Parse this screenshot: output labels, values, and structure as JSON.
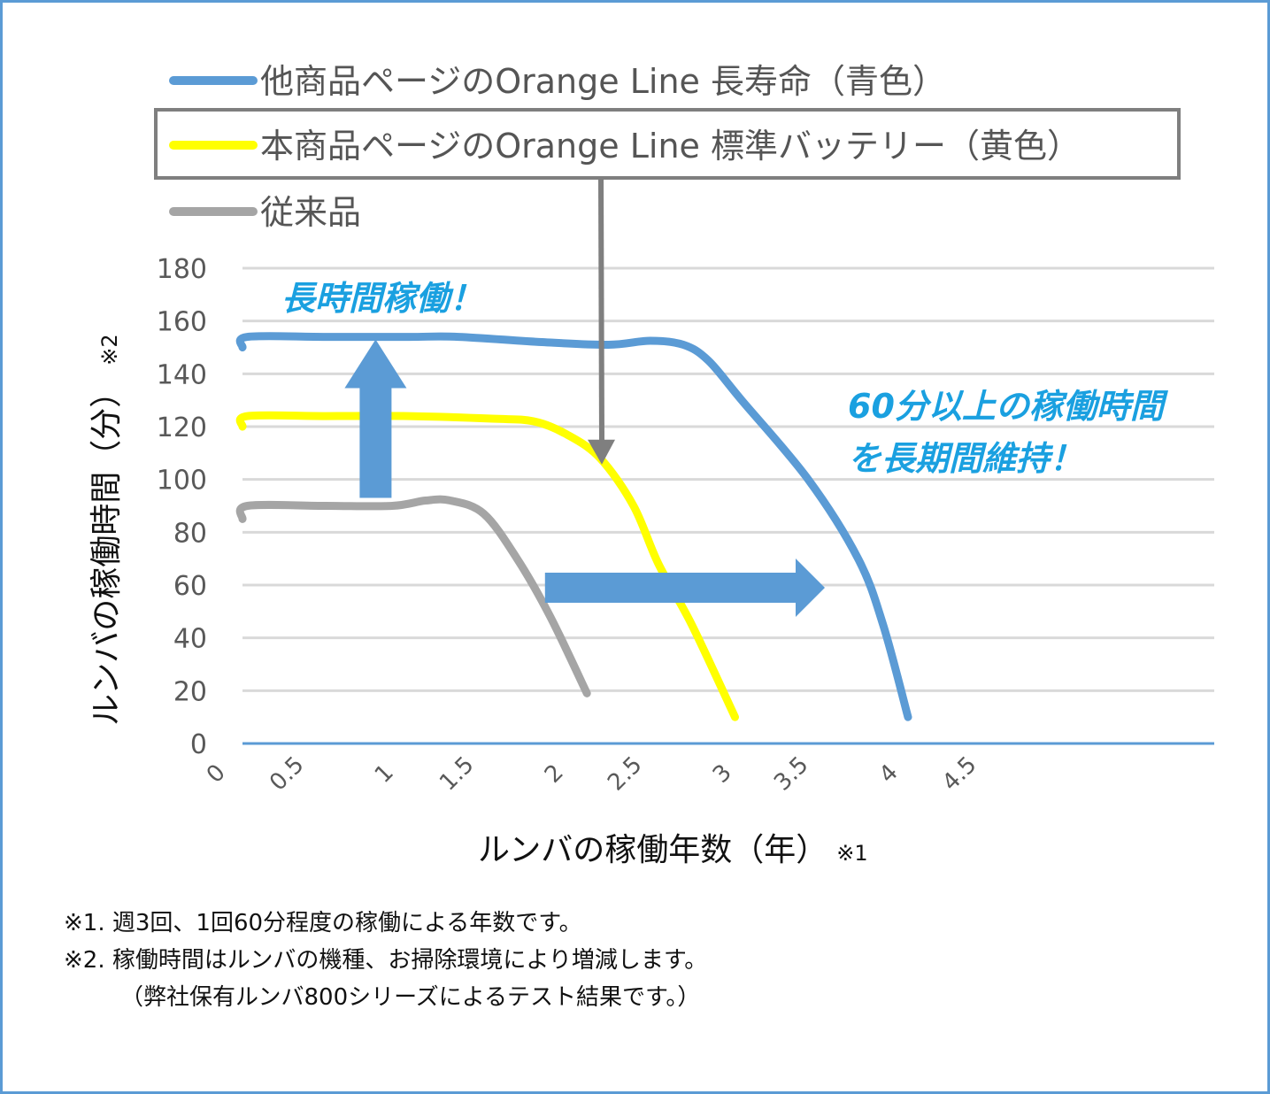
{
  "chart_data": {
    "type": "line",
    "title": "",
    "xlabel": "ルンバの稼働年数（年）",
    "xlabel_note": "※1",
    "ylabel": "ルンバの稼働時間（分）",
    "ylabel_note": "※2",
    "ylim": [
      0,
      180
    ],
    "xlim": [
      0,
      4.5
    ],
    "y_ticks": [
      0,
      20,
      40,
      60,
      80,
      100,
      120,
      140,
      160,
      180
    ],
    "y_tick_labels": [
      "0",
      "20",
      "40",
      "60",
      "80",
      "100",
      "120",
      "140",
      "160",
      "180"
    ],
    "x_tick_labels": [
      "0",
      "0.5",
      "1",
      "1.5",
      "2",
      "2.5",
      "3",
      "3.5",
      "4",
      "4.5"
    ],
    "x_ticks": [
      0,
      0.5,
      1,
      1.5,
      2,
      2.5,
      3,
      3.5,
      4,
      4.5
    ],
    "grid": true,
    "legend_position": "top",
    "series": [
      {
        "name": "他商品ページのOrange Line 長寿命（青色）",
        "color": "#5b9bd5",
        "x": [
          0,
          0.03,
          0.5,
          1.0,
          1.3,
          1.8,
          2.2,
          2.45,
          2.65,
          2.8,
          3.0,
          3.4,
          3.7,
          3.85,
          4.0
        ],
        "y": [
          150,
          154,
          154,
          154,
          154,
          152,
          151,
          152.5,
          151,
          145,
          130,
          100,
          70,
          45,
          10
        ]
      },
      {
        "name": "本商品ページのOrange Line 標準バッテリー（黄色）",
        "color": "#ffff00",
        "highlighted": true,
        "x": [
          0,
          0.03,
          0.5,
          1.0,
          1.5,
          1.75,
          1.95,
          2.15,
          2.35,
          2.5,
          2.7,
          2.96
        ],
        "y": [
          120,
          124,
          124,
          124,
          123,
          122,
          117,
          108,
          90,
          68,
          45,
          10
        ]
      },
      {
        "name": "従来品",
        "color": "#a5a5a5",
        "x": [
          0,
          0.03,
          0.5,
          0.9,
          1.1,
          1.25,
          1.45,
          1.65,
          1.85,
          2.07
        ],
        "y": [
          85,
          90,
          90,
          90,
          92,
          92,
          87,
          70,
          48,
          19
        ]
      }
    ],
    "annotations": [
      {
        "text": "長時間稼働！",
        "color": "#1aa0e0"
      },
      {
        "text": "60分以上の稼働時間",
        "color": "#1aa0e0"
      },
      {
        "text": "を長期間維持！",
        "color": "#1aa0e0"
      }
    ],
    "arrows": [
      {
        "name": "up-arrow",
        "direction": "up",
        "color": "#5b9bd5",
        "from": {
          "x": 0.8,
          "y": 93
        },
        "to": {
          "x": 0.8,
          "y": 153
        }
      },
      {
        "name": "right-arrow",
        "direction": "right",
        "color": "#5b9bd5",
        "from": {
          "x": 1.85,
          "y": 60
        },
        "to": {
          "x": 3.5,
          "y": 60
        }
      },
      {
        "name": "pointer-arrow",
        "direction": "down",
        "color": "#7f7f7f",
        "from_legend": "本商品ページのOrange Line 標準バッテリー（黄色）",
        "to": {
          "x": 2.15,
          "y": 107
        }
      }
    ]
  },
  "footnotes": [
    "※1. 週3回、1回60分程度の稼働による年数です。",
    "※2. 稼働時間はルンバの機種、お掃除環境により増減します。",
    "（弊社保有ルンバ800シリーズによるテスト結果です。）"
  ]
}
